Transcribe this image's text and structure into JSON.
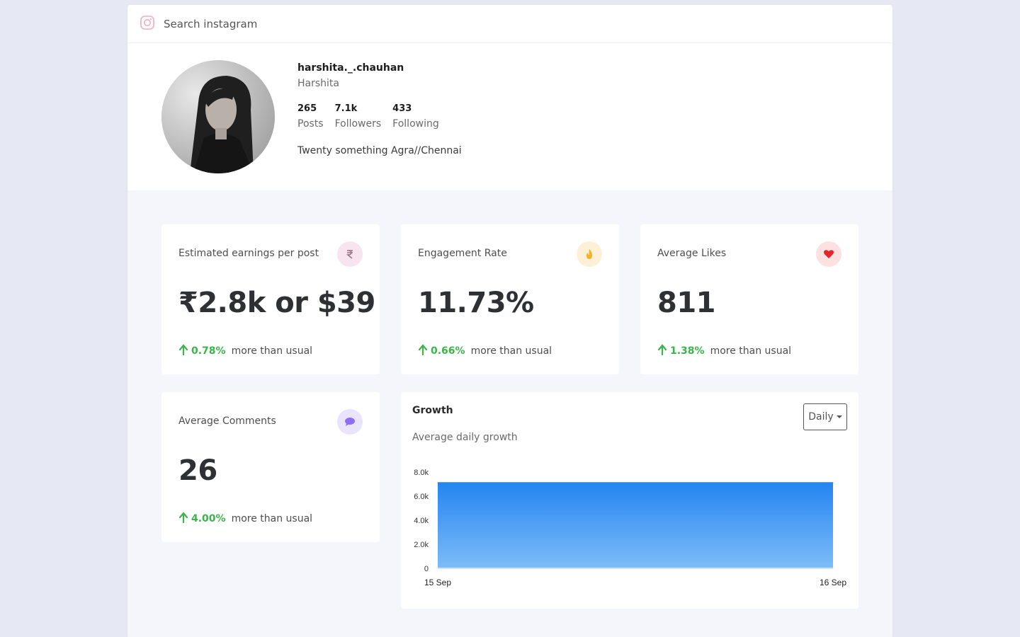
{
  "search": {
    "placeholder": "Search instagram"
  },
  "profile": {
    "username": "harshita._.chauhan",
    "full_name": "Harshita",
    "stats": [
      {
        "value": "265",
        "label": "Posts"
      },
      {
        "value": "7.1k",
        "label": "Followers"
      },
      {
        "value": "433",
        "label": "Following"
      }
    ],
    "bio": "Twenty something Agra//Chennai"
  },
  "cards": {
    "earnings": {
      "title": "Estimated earnings per post",
      "value": "₹2.8k or $39",
      "trend_pct": "0.78%",
      "trend_text": "more than usual",
      "icon": "rupee-icon",
      "icon_bg": "#f7e4ef",
      "icon_color": "#9a7588"
    },
    "engagement": {
      "title": "Engagement Rate",
      "value": "11.73%",
      "trend_pct": "0.66%",
      "trend_text": "more than usual",
      "icon": "flame-icon",
      "icon_bg": "#fcf0d6",
      "icon_color": "#f0b429"
    },
    "likes": {
      "title": "Average Likes",
      "value": "811",
      "trend_pct": "1.38%",
      "trend_text": "more than usual",
      "icon": "heart-icon",
      "icon_bg": "#fde1e1",
      "icon_color": "#e5252a"
    },
    "comments": {
      "title": "Average Comments",
      "value": "26",
      "trend_pct": "4.00%",
      "trend_text": "more than usual",
      "icon": "chat-icon",
      "icon_bg": "#e9e4fb",
      "icon_color": "#8b6ff0"
    }
  },
  "growth": {
    "title": "Growth",
    "subtitle": "Average daily growth",
    "dropdown_label": "Daily"
  },
  "colors": {
    "trend_up": "#3ab54a",
    "area_top": "#2585f2",
    "area_bottom": "#7dbcf7"
  },
  "chart_data": {
    "type": "area",
    "x": [
      "15 Sep",
      "16 Sep"
    ],
    "series": [
      {
        "values": [
          7100,
          7100
        ]
      }
    ],
    "ylim": [
      0,
      8000
    ],
    "yticks": [
      "0",
      "2.0k",
      "4.0k",
      "6.0k",
      "8.0k"
    ],
    "ytick_values": [
      0,
      2000,
      4000,
      6000,
      8000
    ],
    "grid": false
  }
}
